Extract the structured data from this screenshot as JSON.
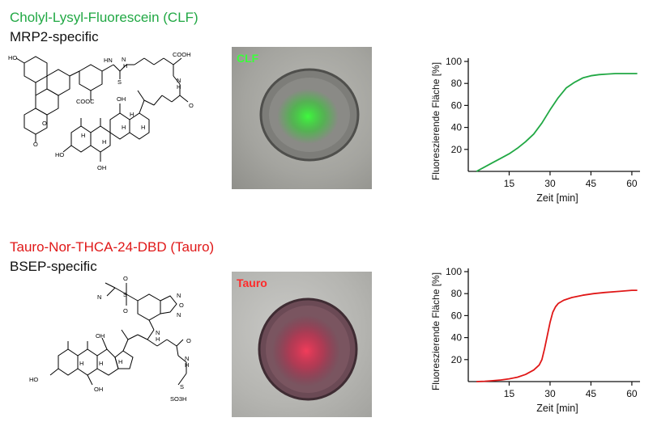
{
  "panels": [
    {
      "title": "Cholyl-Lysyl-Fluorescein (CLF)",
      "subtitle": "MRP2-specific",
      "photo_label": "CLF",
      "accent": "#21a844",
      "molecule_labels": [
        "HO",
        "O",
        "O",
        "COOH",
        "S",
        "HN",
        "N",
        "H",
        "COOH",
        "N",
        "H",
        "O",
        "OH",
        "HO",
        "OH",
        "H",
        "H",
        "H",
        "H",
        "H"
      ]
    },
    {
      "title": "Tauro-Nor-THCA-24-DBD (Tauro)",
      "subtitle": "BSEP-specific",
      "photo_label": "Tauro",
      "accent": "#e01818",
      "molecule_labels": [
        "O",
        "S",
        "O",
        "N",
        "N",
        "O",
        "N",
        "N",
        "H",
        "OH",
        "N",
        "H",
        "O",
        "HO",
        "OH",
        "SO3H",
        "S",
        "H",
        "H",
        "H"
      ]
    }
  ],
  "chart_data": [
    {
      "type": "line",
      "title": "",
      "xlabel": "Zeit [min]",
      "ylabel": "Fluoreszierende Fläche [%]",
      "xlim": [
        0,
        63
      ],
      "ylim": [
        0,
        100
      ],
      "xticks": [
        15,
        30,
        45,
        60
      ],
      "yticks": [
        20,
        40,
        60,
        80,
        100
      ],
      "grid": false,
      "series": [
        {
          "color": "#21a844",
          "x": [
            3,
            6,
            9,
            12,
            15,
            18,
            21,
            24,
            27,
            30,
            33,
            36,
            39,
            42,
            45,
            48,
            51,
            54,
            57,
            60,
            62
          ],
          "y": [
            0,
            4,
            8,
            12,
            16,
            21,
            27,
            34,
            44,
            56,
            67,
            76,
            81,
            85,
            87,
            88,
            88.5,
            89,
            89,
            89,
            89
          ]
        }
      ]
    },
    {
      "type": "line",
      "title": "",
      "xlabel": "Zeit [min]",
      "ylabel": "Fluoreszierende Fläche [%]",
      "xlim": [
        0,
        63
      ],
      "ylim": [
        0,
        100
      ],
      "xticks": [
        15,
        30,
        45,
        60
      ],
      "yticks": [
        20,
        40,
        60,
        80,
        100
      ],
      "grid": false,
      "series": [
        {
          "color": "#e01818",
          "x": [
            3,
            6,
            9,
            12,
            15,
            18,
            21,
            24,
            26,
            27,
            28,
            29,
            30,
            31,
            32,
            33,
            35,
            38,
            42,
            46,
            50,
            55,
            60,
            62
          ],
          "y": [
            0,
            0.3,
            0.8,
            1.5,
            2.5,
            4,
            6.5,
            10.5,
            15,
            20,
            30,
            42,
            54,
            63,
            68,
            71,
            74,
            76.5,
            78.5,
            80,
            81,
            82,
            83,
            83
          ]
        }
      ]
    }
  ]
}
